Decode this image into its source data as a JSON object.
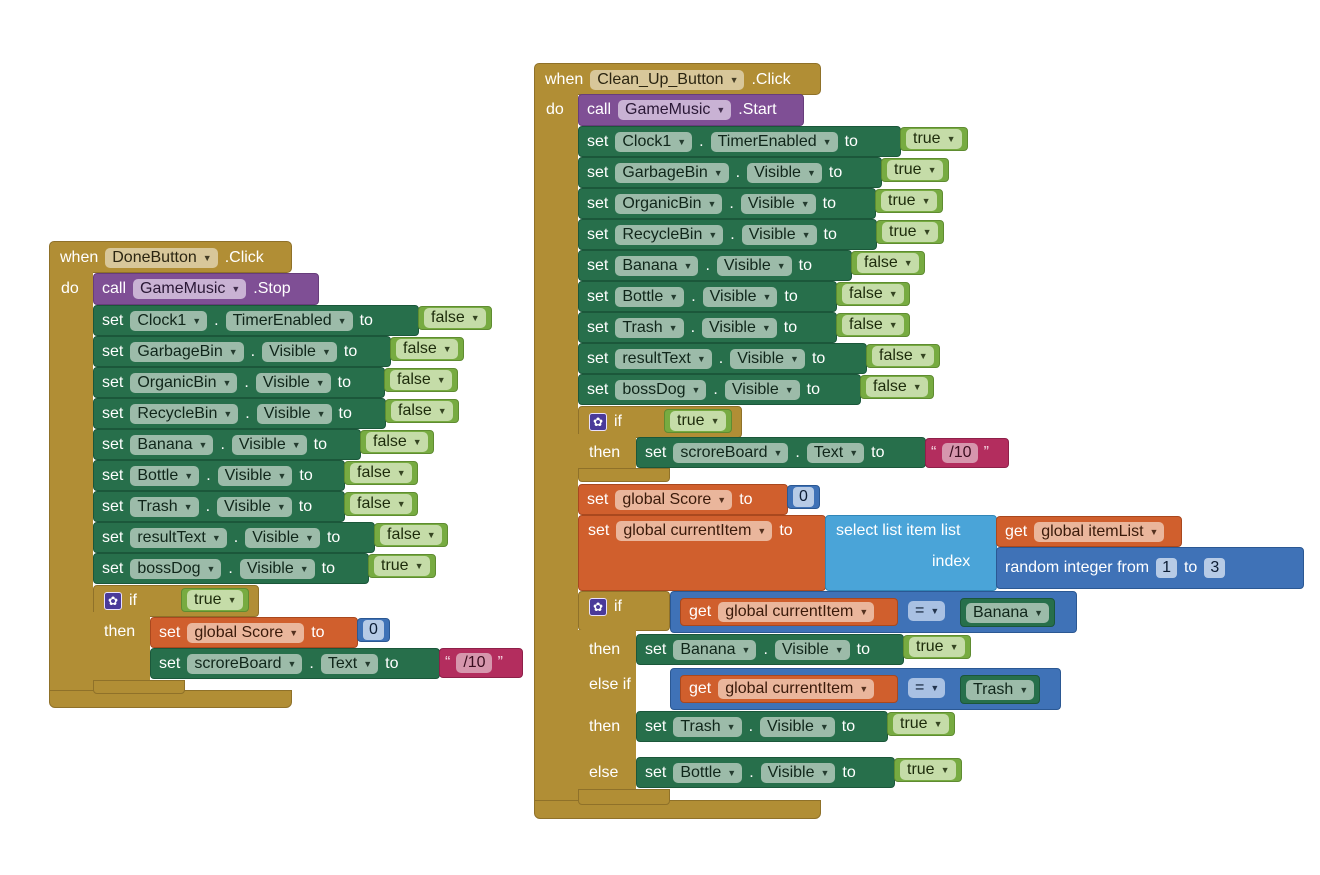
{
  "keywords": {
    "when": "when",
    "do": "do",
    "call": "call",
    "set": "set",
    "to": "to",
    "dot": ".",
    "if": "if",
    "then": "then",
    "else_if": "else if",
    "else": "else",
    "get": "get",
    "select_list_item": "select list item",
    "list": "list",
    "index": "index",
    "random_integer_from": "random integer from",
    "quote_open": "“",
    "quote_close": "”",
    "eq": "="
  },
  "icons": {
    "gear": "gear-icon",
    "caret": "chevron-down-icon"
  },
  "colors": {
    "event": "#b18e35",
    "procedure": "#7f4f95",
    "component": "#276f4b",
    "variable": "#d05f2d",
    "list": "#4aa4d8",
    "math": "#3f72b7",
    "logic": "#77ab41",
    "text": "#b32d5e"
  },
  "done_block": {
    "component": "DoneButton",
    "event": ".Click",
    "call_component": "GameMusic",
    "call_method": ".Stop",
    "sets": [
      {
        "component": "Clock1",
        "property": "TimerEnabled",
        "value": "false"
      },
      {
        "component": "GarbageBin",
        "property": "Visible",
        "value": "false"
      },
      {
        "component": "OrganicBin",
        "property": "Visible",
        "value": "false"
      },
      {
        "component": "RecycleBin",
        "property": "Visible",
        "value": "false"
      },
      {
        "component": "Banana",
        "property": "Visible",
        "value": "false"
      },
      {
        "component": "Bottle",
        "property": "Visible",
        "value": "false"
      },
      {
        "component": "Trash",
        "property": "Visible",
        "value": "false"
      },
      {
        "component": "resultText",
        "property": "Visible",
        "value": "false"
      },
      {
        "component": "bossDog",
        "property": "Visible",
        "value": "true"
      }
    ],
    "if_condition": "true",
    "then_set_global": "global Score",
    "then_set_global_value": "0",
    "then_set_component": "scroreBoard",
    "then_set_property": "Text",
    "then_set_text": "/10"
  },
  "cleanup_block": {
    "component": "Clean_Up_Button",
    "event": ".Click",
    "call_component": "GameMusic",
    "call_method": ".Start",
    "sets": [
      {
        "component": "Clock1",
        "property": "TimerEnabled",
        "value": "true"
      },
      {
        "component": "GarbageBin",
        "property": "Visible",
        "value": "true"
      },
      {
        "component": "OrganicBin",
        "property": "Visible",
        "value": "true"
      },
      {
        "component": "RecycleBin",
        "property": "Visible",
        "value": "true"
      },
      {
        "component": "Banana",
        "property": "Visible",
        "value": "false"
      },
      {
        "component": "Bottle",
        "property": "Visible",
        "value": "false"
      },
      {
        "component": "Trash",
        "property": "Visible",
        "value": "false"
      },
      {
        "component": "resultText",
        "property": "Visible",
        "value": "false"
      },
      {
        "component": "bossDog",
        "property": "Visible",
        "value": "false"
      }
    ],
    "if_condition": "true",
    "then_set_component": "scroreBoard",
    "then_set_property": "Text",
    "then_set_text": "/10",
    "score_var": "global Score",
    "score_value": "0",
    "current_var": "global currentItem",
    "list_var": "global itemList",
    "random_from": "1",
    "random_to": "3",
    "if2_var": "global currentItem",
    "if2_op": "=",
    "if2_value": "Banana",
    "then2_component": "Banana",
    "then2_property": "Visible",
    "then2_value": "true",
    "elseif_var": "global currentItem",
    "elseif_op": "=",
    "elseif_value": "Trash",
    "then3_component": "Trash",
    "then3_property": "Visible",
    "then3_value": "true",
    "else_component": "Bottle",
    "else_property": "Visible",
    "else_value": "true"
  }
}
